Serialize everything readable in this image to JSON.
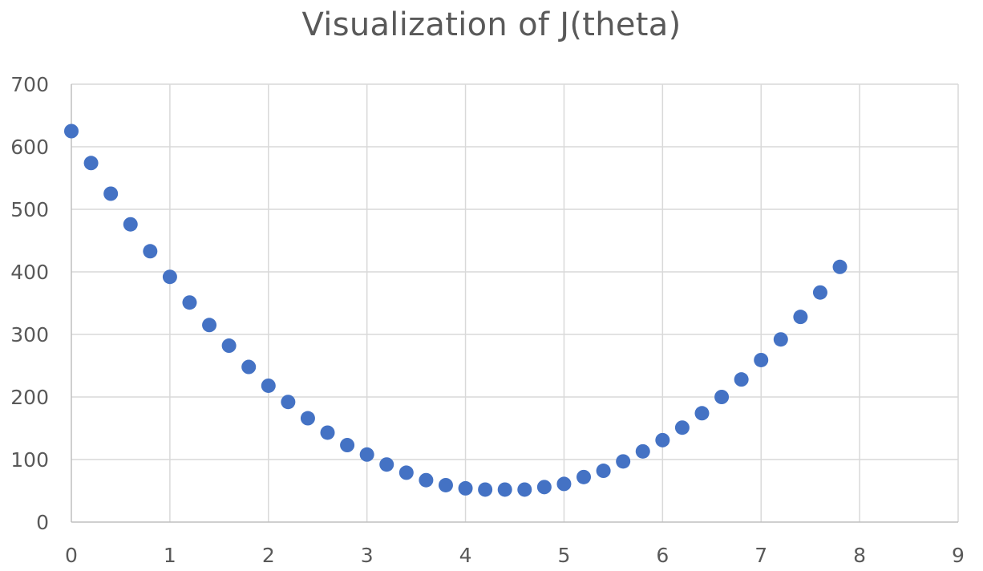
{
  "chart_data": {
    "type": "scatter",
    "title": "Visualization of J(theta)",
    "xlabel": "",
    "ylabel": "",
    "xlim": [
      0,
      9
    ],
    "ylim": [
      0,
      700
    ],
    "xticks": [
      0,
      1,
      2,
      3,
      4,
      5,
      6,
      7,
      8,
      9
    ],
    "yticks": [
      0,
      100,
      200,
      300,
      400,
      500,
      600,
      700
    ],
    "grid": true,
    "legend": "none",
    "color": "#4472c4",
    "series": [
      {
        "name": "J(theta)",
        "x": [
          0,
          0.2,
          0.4,
          0.6,
          0.8,
          1.0,
          1.2,
          1.4,
          1.6,
          1.8,
          2.0,
          2.2,
          2.4,
          2.6,
          2.8,
          3.0,
          3.2,
          3.4,
          3.6,
          3.8,
          4.0,
          4.2,
          4.4,
          4.6,
          4.8,
          5.0,
          5.2,
          5.4,
          5.6,
          5.8,
          6.0,
          6.2,
          6.4,
          6.6,
          6.8,
          7.0,
          7.2,
          7.4,
          7.6,
          7.8
        ],
        "y": [
          625,
          574,
          525,
          476,
          433,
          392,
          351,
          315,
          282,
          248,
          218,
          192,
          166,
          143,
          123,
          108,
          92,
          79,
          67,
          59,
          54,
          52,
          52,
          52,
          56,
          61,
          72,
          82,
          97,
          113,
          131,
          151,
          174,
          200,
          228,
          259,
          292,
          328,
          367,
          408
        ]
      }
    ]
  }
}
